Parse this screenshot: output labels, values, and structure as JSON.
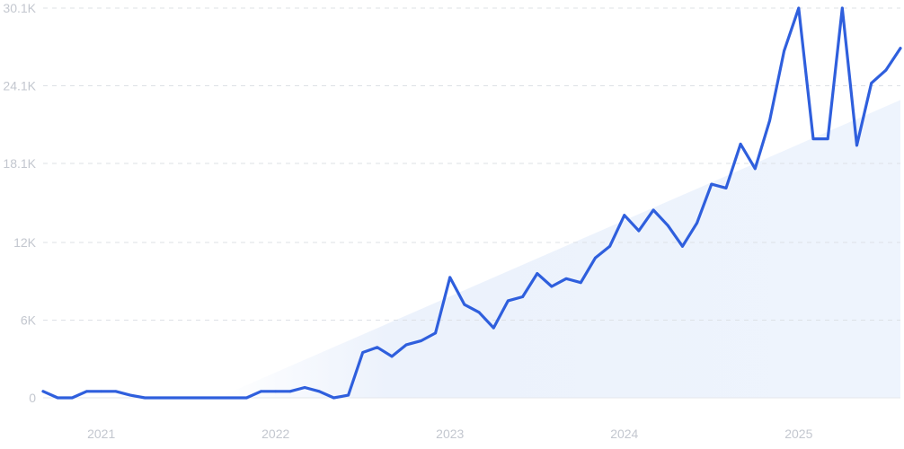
{
  "chart_data": {
    "type": "line",
    "title": "",
    "xlabel": "",
    "ylabel": "",
    "ylim": [
      0,
      30100
    ],
    "yticks": [
      0,
      6000,
      12000,
      18100,
      24100,
      30100
    ],
    "ytick_labels": [
      "0",
      "6K",
      "12K",
      "18.1K",
      "24.1K",
      "30.1K"
    ],
    "xticks": [
      "2021-01",
      "2022-01",
      "2023-01",
      "2024-01",
      "2025-01"
    ],
    "xtick_labels": [
      "2021",
      "2022",
      "2023",
      "2024",
      "2025"
    ],
    "grid": true,
    "colors": {
      "line": "#2f5fdd",
      "trend": "#e6effb",
      "grid": "#dde1e6",
      "axis": "#e4e7eb"
    },
    "series": [
      {
        "x": [
          "2020-09",
          "2020-10",
          "2020-11",
          "2020-12",
          "2021-01",
          "2021-02",
          "2021-03",
          "2021-04",
          "2021-05",
          "2021-06",
          "2021-07",
          "2021-08",
          "2021-09",
          "2021-10",
          "2021-11",
          "2021-12",
          "2022-01",
          "2022-02",
          "2022-03",
          "2022-04",
          "2022-05",
          "2022-06",
          "2022-07",
          "2022-08",
          "2022-09",
          "2022-10",
          "2022-11",
          "2022-12",
          "2023-01",
          "2023-02",
          "2023-03",
          "2023-04",
          "2023-05",
          "2023-06",
          "2023-07",
          "2023-08",
          "2023-09",
          "2023-10",
          "2023-11",
          "2023-12",
          "2024-01",
          "2024-02",
          "2024-03",
          "2024-04",
          "2024-05",
          "2024-06",
          "2024-07",
          "2024-08",
          "2024-09",
          "2024-10",
          "2024-11",
          "2024-12",
          "2025-01",
          "2025-02",
          "2025-03",
          "2025-04",
          "2025-05",
          "2025-06",
          "2025-07",
          "2025-08"
        ],
        "values": [
          500,
          0,
          0,
          500,
          500,
          500,
          200,
          0,
          0,
          0,
          0,
          0,
          0,
          0,
          0,
          500,
          500,
          500,
          800,
          500,
          0,
          200,
          3500,
          3900,
          3200,
          4100,
          4400,
          5000,
          9300,
          7200,
          6600,
          5400,
          7500,
          7800,
          9600,
          8600,
          9200,
          8900,
          10800,
          11700,
          14100,
          12900,
          14500,
          13300,
          11700,
          13500,
          16500,
          16200,
          19600,
          17700,
          21400,
          26800,
          30100,
          20000,
          20000,
          30100,
          19500,
          24300,
          25300,
          27000
        ]
      }
    ],
    "trend": {
      "x": [
        "2021-09",
        "2025-08"
      ],
      "values": [
        0,
        23000
      ]
    }
  }
}
